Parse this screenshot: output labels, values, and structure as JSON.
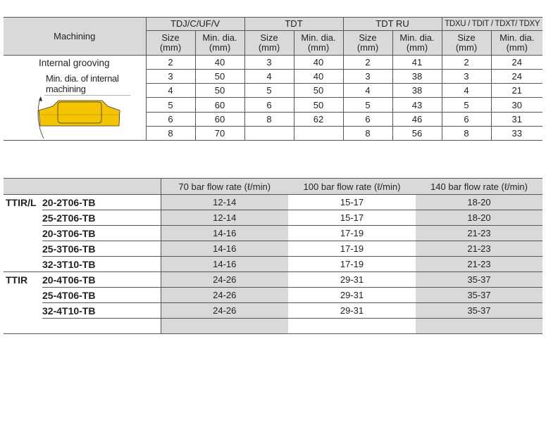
{
  "table1": {
    "machining_header": "Machining",
    "groups": [
      "TDJ/C/UF/V",
      "TDT",
      "TDT RU",
      "TDXU / TDIT / TDXT/ TDXY"
    ],
    "size_label": "Size\n(mm)",
    "size_l1": "Size",
    "min_l1": "Min. dia.",
    "unit": "(mm)",
    "row_label": "Internal grooving",
    "diagram_label": [
      "Min. dia. of internal",
      "machining"
    ],
    "insert_color": "#f5c400",
    "rows": [
      [
        "2",
        "40",
        "3",
        "40",
        "2",
        "41",
        "2",
        "24"
      ],
      [
        "3",
        "50",
        "4",
        "40",
        "3",
        "38",
        "3",
        "24"
      ],
      [
        "4",
        "50",
        "5",
        "50",
        "4",
        "38",
        "4",
        "21"
      ],
      [
        "5",
        "60",
        "6",
        "50",
        "5",
        "43",
        "5",
        "30"
      ],
      [
        "6",
        "60",
        "8",
        "62",
        "6",
        "46",
        "6",
        "31"
      ],
      [
        "8",
        "70",
        "",
        "",
        "8",
        "56",
        "8",
        "33"
      ]
    ]
  },
  "table2": {
    "headers": [
      "70 bar flow rate (ℓ/min)",
      "100 bar flow rate (ℓ/min)",
      "140 bar flow rate (ℓ/min)"
    ],
    "rows": [
      [
        "TTIR/L",
        "20-2T06-TB",
        "12-14",
        "15-17",
        "18-20"
      ],
      [
        "",
        "25-2T06-TB",
        "12-14",
        "15-17",
        "18-20"
      ],
      [
        "",
        "20-3T06-TB",
        "14-16",
        "17-19",
        "21-23"
      ],
      [
        "",
        "25-3T06-TB",
        "14-16",
        "17-19",
        "21-23"
      ],
      [
        "",
        "32-3T10-TB",
        "14-16",
        "17-19",
        "21-23"
      ],
      [
        "TTIR",
        "20-4T06-TB",
        "24-26",
        "29-31",
        "35-37"
      ],
      [
        "",
        "25-4T06-TB",
        "24-26",
        "29-31",
        "35-37"
      ],
      [
        "",
        "32-4T10-TB",
        "24-26",
        "29-31",
        "35-37"
      ],
      [
        "",
        "",
        "",
        "",
        ""
      ]
    ]
  }
}
